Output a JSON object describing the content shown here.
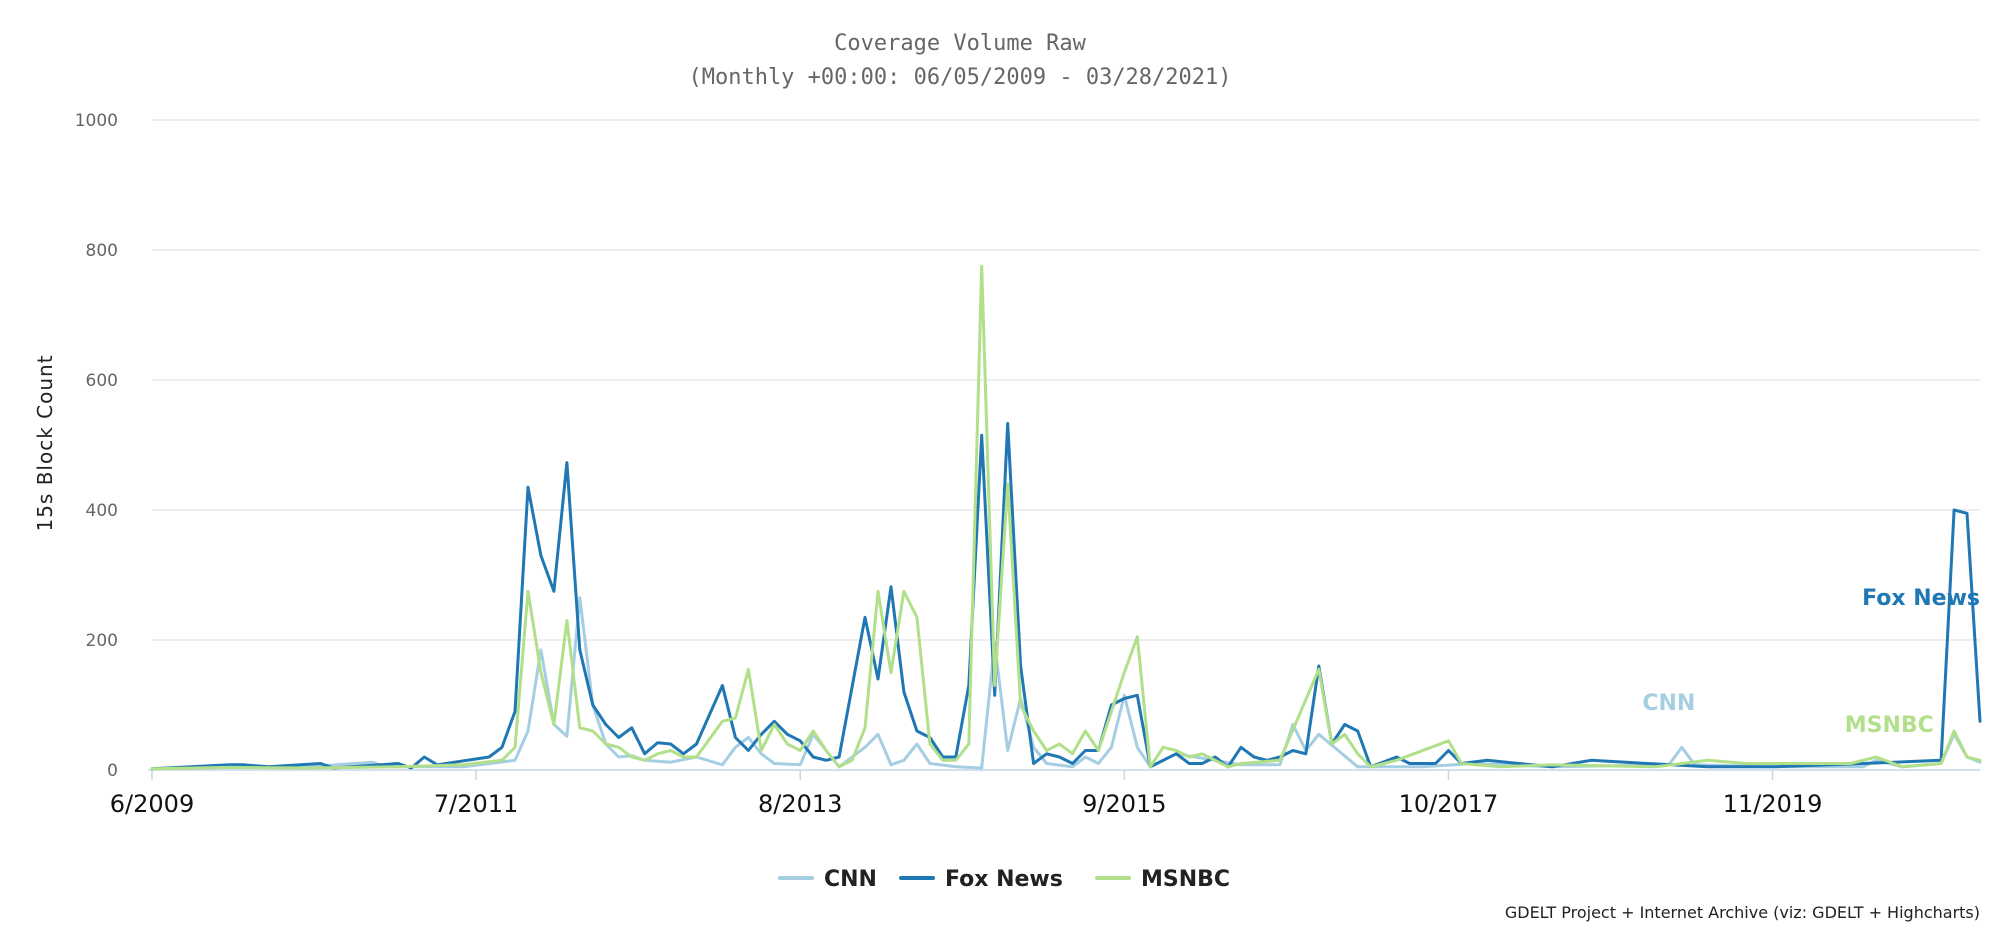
{
  "chart_data": {
    "type": "line",
    "title": "Coverage Volume Raw",
    "subtitle": "(Monthly +00:00: 06/05/2009 - 03/28/2021)",
    "ylabel": "15s Block Count",
    "xlabel": "",
    "ylim": [
      0,
      1000
    ],
    "yticks": [
      "0",
      "200",
      "400",
      "600",
      "800",
      "1000"
    ],
    "xlim": [
      "2009-06",
      "2021-03"
    ],
    "xticks": [
      {
        "label": "6/2009",
        "x": "2009-06"
      },
      {
        "label": "7/2011",
        "x": "2011-07"
      },
      {
        "label": "8/2013",
        "x": "2013-08"
      },
      {
        "label": "9/2015",
        "x": "2015-09"
      },
      {
        "label": "10/2017",
        "x": "2017-10"
      },
      {
        "label": "11/2019",
        "x": "2019-11"
      }
    ],
    "grid": true,
    "legend_position": "bottom-center",
    "credit": "GDELT Project + Internet Archive (viz: GDELT + Highcharts)",
    "series": [
      {
        "name": "CNN",
        "color": "#a6cee3",
        "values": [
          {
            "x": "2009-06",
            "y": 2
          },
          {
            "x": "2009-09",
            "y": 3
          },
          {
            "x": "2010-01",
            "y": 4
          },
          {
            "x": "2010-06",
            "y": 5
          },
          {
            "x": "2010-11",
            "y": 12
          },
          {
            "x": "2010-12",
            "y": 5
          },
          {
            "x": "2011-06",
            "y": 5
          },
          {
            "x": "2011-10",
            "y": 15
          },
          {
            "x": "2011-11",
            "y": 60
          },
          {
            "x": "2011-12",
            "y": 185
          },
          {
            "x": "2012-01",
            "y": 70
          },
          {
            "x": "2012-02",
            "y": 52
          },
          {
            "x": "2012-03",
            "y": 265
          },
          {
            "x": "2012-04",
            "y": 100
          },
          {
            "x": "2012-05",
            "y": 40
          },
          {
            "x": "2012-06",
            "y": 20
          },
          {
            "x": "2012-07",
            "y": 22
          },
          {
            "x": "2012-08",
            "y": 15
          },
          {
            "x": "2012-10",
            "y": 12
          },
          {
            "x": "2012-12",
            "y": 20
          },
          {
            "x": "2013-02",
            "y": 8
          },
          {
            "x": "2013-03",
            "y": 35
          },
          {
            "x": "2013-04",
            "y": 50
          },
          {
            "x": "2013-05",
            "y": 25
          },
          {
            "x": "2013-06",
            "y": 10
          },
          {
            "x": "2013-08",
            "y": 8
          },
          {
            "x": "2013-09",
            "y": 55
          },
          {
            "x": "2013-11",
            "y": 5
          },
          {
            "x": "2014-01",
            "y": 35
          },
          {
            "x": "2014-02",
            "y": 55
          },
          {
            "x": "2014-03",
            "y": 8
          },
          {
            "x": "2014-04",
            "y": 15
          },
          {
            "x": "2014-05",
            "y": 40
          },
          {
            "x": "2014-06",
            "y": 10
          },
          {
            "x": "2014-08",
            "y": 5
          },
          {
            "x": "2014-10",
            "y": 3
          },
          {
            "x": "2014-11",
            "y": 195
          },
          {
            "x": "2014-12",
            "y": 30
          },
          {
            "x": "2015-01",
            "y": 110
          },
          {
            "x": "2015-02",
            "y": 35
          },
          {
            "x": "2015-03",
            "y": 10
          },
          {
            "x": "2015-05",
            "y": 5
          },
          {
            "x": "2015-06",
            "y": 20
          },
          {
            "x": "2015-07",
            "y": 10
          },
          {
            "x": "2015-08",
            "y": 35
          },
          {
            "x": "2015-09",
            "y": 115
          },
          {
            "x": "2015-10",
            "y": 35
          },
          {
            "x": "2015-11",
            "y": 5
          },
          {
            "x": "2016-01",
            "y": 25
          },
          {
            "x": "2016-06",
            "y": 8
          },
          {
            "x": "2016-09",
            "y": 8
          },
          {
            "x": "2016-10",
            "y": 70
          },
          {
            "x": "2016-11",
            "y": 30
          },
          {
            "x": "2016-12",
            "y": 55
          },
          {
            "x": "2017-03",
            "y": 5
          },
          {
            "x": "2017-08",
            "y": 5
          },
          {
            "x": "2017-12",
            "y": 10
          },
          {
            "x": "2018-06",
            "y": 5
          },
          {
            "x": "2019-03",
            "y": 8
          },
          {
            "x": "2019-04",
            "y": 35
          },
          {
            "x": "2019-05",
            "y": 8
          },
          {
            "x": "2019-11",
            "y": 5
          },
          {
            "x": "2020-06",
            "y": 5
          },
          {
            "x": "2020-07",
            "y": 15
          },
          {
            "x": "2020-09",
            "y": 5
          },
          {
            "x": "2020-12",
            "y": 10
          },
          {
            "x": "2021-01",
            "y": 55
          },
          {
            "x": "2021-02",
            "y": 20
          },
          {
            "x": "2021-03",
            "y": 12
          }
        ]
      },
      {
        "name": "Fox News",
        "color": "#1f78b4",
        "values": [
          {
            "x": "2009-06",
            "y": 2
          },
          {
            "x": "2009-12",
            "y": 8
          },
          {
            "x": "2010-01",
            "y": 8
          },
          {
            "x": "2010-03",
            "y": 5
          },
          {
            "x": "2010-07",
            "y": 10
          },
          {
            "x": "2010-08",
            "y": 3
          },
          {
            "x": "2011-01",
            "y": 10
          },
          {
            "x": "2011-02",
            "y": 3
          },
          {
            "x": "2011-03",
            "y": 20
          },
          {
            "x": "2011-04",
            "y": 8
          },
          {
            "x": "2011-08",
            "y": 20
          },
          {
            "x": "2011-09",
            "y": 35
          },
          {
            "x": "2011-10",
            "y": 90
          },
          {
            "x": "2011-11",
            "y": 435
          },
          {
            "x": "2011-12",
            "y": 330
          },
          {
            "x": "2012-01",
            "y": 275
          },
          {
            "x": "2012-02",
            "y": 473
          },
          {
            "x": "2012-03",
            "y": 185
          },
          {
            "x": "2012-04",
            "y": 100
          },
          {
            "x": "2012-05",
            "y": 70
          },
          {
            "x": "2012-06",
            "y": 50
          },
          {
            "x": "2012-07",
            "y": 65
          },
          {
            "x": "2012-08",
            "y": 25
          },
          {
            "x": "2012-09",
            "y": 42
          },
          {
            "x": "2012-10",
            "y": 40
          },
          {
            "x": "2012-11",
            "y": 25
          },
          {
            "x": "2012-12",
            "y": 40
          },
          {
            "x": "2013-02",
            "y": 130
          },
          {
            "x": "2013-03",
            "y": 50
          },
          {
            "x": "2013-04",
            "y": 30
          },
          {
            "x": "2013-05",
            "y": 55
          },
          {
            "x": "2013-06",
            "y": 75
          },
          {
            "x": "2013-07",
            "y": 55
          },
          {
            "x": "2013-08",
            "y": 45
          },
          {
            "x": "2013-09",
            "y": 20
          },
          {
            "x": "2013-10",
            "y": 15
          },
          {
            "x": "2013-11",
            "y": 20
          },
          {
            "x": "2014-01",
            "y": 235
          },
          {
            "x": "2014-02",
            "y": 140
          },
          {
            "x": "2014-03",
            "y": 282
          },
          {
            "x": "2014-04",
            "y": 120
          },
          {
            "x": "2014-05",
            "y": 60
          },
          {
            "x": "2014-06",
            "y": 50
          },
          {
            "x": "2014-07",
            "y": 20
          },
          {
            "x": "2014-08",
            "y": 20
          },
          {
            "x": "2014-09",
            "y": 130
          },
          {
            "x": "2014-10",
            "y": 515
          },
          {
            "x": "2014-11",
            "y": 115
          },
          {
            "x": "2014-12",
            "y": 533
          },
          {
            "x": "2015-01",
            "y": 160
          },
          {
            "x": "2015-02",
            "y": 10
          },
          {
            "x": "2015-03",
            "y": 25
          },
          {
            "x": "2015-04",
            "y": 20
          },
          {
            "x": "2015-05",
            "y": 10
          },
          {
            "x": "2015-06",
            "y": 30
          },
          {
            "x": "2015-07",
            "y": 30
          },
          {
            "x": "2015-08",
            "y": 100
          },
          {
            "x": "2015-09",
            "y": 110
          },
          {
            "x": "2015-10",
            "y": 115
          },
          {
            "x": "2015-11",
            "y": 5
          },
          {
            "x": "2015-12",
            "y": 15
          },
          {
            "x": "2016-01",
            "y": 25
          },
          {
            "x": "2016-02",
            "y": 10
          },
          {
            "x": "2016-03",
            "y": 10
          },
          {
            "x": "2016-04",
            "y": 20
          },
          {
            "x": "2016-05",
            "y": 5
          },
          {
            "x": "2016-06",
            "y": 35
          },
          {
            "x": "2016-07",
            "y": 20
          },
          {
            "x": "2016-08",
            "y": 15
          },
          {
            "x": "2016-09",
            "y": 20
          },
          {
            "x": "2016-10",
            "y": 30
          },
          {
            "x": "2016-11",
            "y": 25
          },
          {
            "x": "2016-12",
            "y": 160
          },
          {
            "x": "2017-01",
            "y": 40
          },
          {
            "x": "2017-02",
            "y": 70
          },
          {
            "x": "2017-03",
            "y": 60
          },
          {
            "x": "2017-04",
            "y": 5
          },
          {
            "x": "2017-06",
            "y": 20
          },
          {
            "x": "2017-07",
            "y": 10
          },
          {
            "x": "2017-09",
            "y": 10
          },
          {
            "x": "2017-10",
            "y": 30
          },
          {
            "x": "2017-11",
            "y": 10
          },
          {
            "x": "2018-01",
            "y": 15
          },
          {
            "x": "2018-06",
            "y": 5
          },
          {
            "x": "2018-09",
            "y": 15
          },
          {
            "x": "2019-06",
            "y": 5
          },
          {
            "x": "2019-11",
            "y": 5
          },
          {
            "x": "2020-06",
            "y": 10
          },
          {
            "x": "2020-12",
            "y": 15
          },
          {
            "x": "2021-01",
            "y": 400
          },
          {
            "x": "2021-02",
            "y": 395
          },
          {
            "x": "2021-03",
            "y": 75
          }
        ]
      },
      {
        "name": "MSNBC",
        "color": "#b2df8a",
        "values": [
          {
            "x": "2009-06",
            "y": 2
          },
          {
            "x": "2009-12",
            "y": 4
          },
          {
            "x": "2010-06",
            "y": 3
          },
          {
            "x": "2011-01",
            "y": 5
          },
          {
            "x": "2011-06",
            "y": 8
          },
          {
            "x": "2011-09",
            "y": 15
          },
          {
            "x": "2011-10",
            "y": 35
          },
          {
            "x": "2011-11",
            "y": 275
          },
          {
            "x": "2011-12",
            "y": 150
          },
          {
            "x": "2012-01",
            "y": 70
          },
          {
            "x": "2012-02",
            "y": 230
          },
          {
            "x": "2012-03",
            "y": 65
          },
          {
            "x": "2012-04",
            "y": 60
          },
          {
            "x": "2012-05",
            "y": 40
          },
          {
            "x": "2012-06",
            "y": 35
          },
          {
            "x": "2012-07",
            "y": 20
          },
          {
            "x": "2012-08",
            "y": 15
          },
          {
            "x": "2012-09",
            "y": 25
          },
          {
            "x": "2012-10",
            "y": 30
          },
          {
            "x": "2012-11",
            "y": 20
          },
          {
            "x": "2012-12",
            "y": 20
          },
          {
            "x": "2013-02",
            "y": 75
          },
          {
            "x": "2013-03",
            "y": 80
          },
          {
            "x": "2013-04",
            "y": 155
          },
          {
            "x": "2013-05",
            "y": 30
          },
          {
            "x": "2013-06",
            "y": 70
          },
          {
            "x": "2013-07",
            "y": 40
          },
          {
            "x": "2013-08",
            "y": 30
          },
          {
            "x": "2013-09",
            "y": 60
          },
          {
            "x": "2013-10",
            "y": 30
          },
          {
            "x": "2013-11",
            "y": 5
          },
          {
            "x": "2013-12",
            "y": 15
          },
          {
            "x": "2014-01",
            "y": 65
          },
          {
            "x": "2014-02",
            "y": 275
          },
          {
            "x": "2014-03",
            "y": 150
          },
          {
            "x": "2014-04",
            "y": 275
          },
          {
            "x": "2014-05",
            "y": 235
          },
          {
            "x": "2014-06",
            "y": 40
          },
          {
            "x": "2014-07",
            "y": 15
          },
          {
            "x": "2014-08",
            "y": 15
          },
          {
            "x": "2014-09",
            "y": 40
          },
          {
            "x": "2014-10",
            "y": 775
          },
          {
            "x": "2014-11",
            "y": 130
          },
          {
            "x": "2014-12",
            "y": 440
          },
          {
            "x": "2015-01",
            "y": 100
          },
          {
            "x": "2015-02",
            "y": 60
          },
          {
            "x": "2015-03",
            "y": 30
          },
          {
            "x": "2015-04",
            "y": 40
          },
          {
            "x": "2015-05",
            "y": 25
          },
          {
            "x": "2015-06",
            "y": 60
          },
          {
            "x": "2015-07",
            "y": 30
          },
          {
            "x": "2015-08",
            "y": 90
          },
          {
            "x": "2015-09",
            "y": 150
          },
          {
            "x": "2015-10",
            "y": 205
          },
          {
            "x": "2015-11",
            "y": 5
          },
          {
            "x": "2015-12",
            "y": 35
          },
          {
            "x": "2016-01",
            "y": 30
          },
          {
            "x": "2016-02",
            "y": 20
          },
          {
            "x": "2016-03",
            "y": 25
          },
          {
            "x": "2016-04",
            "y": 15
          },
          {
            "x": "2016-05",
            "y": 5
          },
          {
            "x": "2016-06",
            "y": 10
          },
          {
            "x": "2016-09",
            "y": 15
          },
          {
            "x": "2016-12",
            "y": 155
          },
          {
            "x": "2017-01",
            "y": 40
          },
          {
            "x": "2017-02",
            "y": 55
          },
          {
            "x": "2017-03",
            "y": 25
          },
          {
            "x": "2017-04",
            "y": 5
          },
          {
            "x": "2017-06",
            "y": 15
          },
          {
            "x": "2017-10",
            "y": 45
          },
          {
            "x": "2017-11",
            "y": 10
          },
          {
            "x": "2018-02",
            "y": 5
          },
          {
            "x": "2018-06",
            "y": 8
          },
          {
            "x": "2019-02",
            "y": 5
          },
          {
            "x": "2019-06",
            "y": 15
          },
          {
            "x": "2019-09",
            "y": 10
          },
          {
            "x": "2020-05",
            "y": 10
          },
          {
            "x": "2020-07",
            "y": 20
          },
          {
            "x": "2020-09",
            "y": 5
          },
          {
            "x": "2020-12",
            "y": 10
          },
          {
            "x": "2021-01",
            "y": 60
          },
          {
            "x": "2021-02",
            "y": 20
          },
          {
            "x": "2021-03",
            "y": 15
          }
        ]
      }
    ]
  }
}
